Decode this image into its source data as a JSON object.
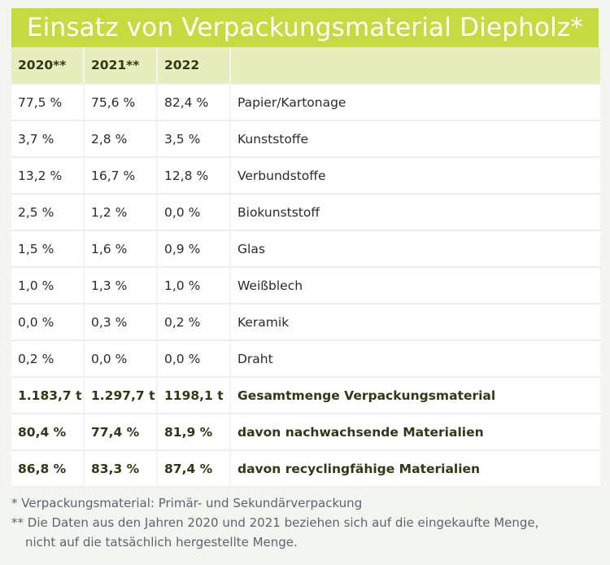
{
  "title": "Einsatz von Verpackungsmaterial Diepholz*",
  "table": {
    "headers": [
      "2020**",
      "2021**",
      "2022",
      ""
    ],
    "rows": [
      {
        "c2020": "77,5 %",
        "c2021": "75,6 %",
        "c2022": "82,4 %",
        "label": "Papier/Kartonage",
        "bold": false
      },
      {
        "c2020": "3,7 %",
        "c2021": "2,8 %",
        "c2022": "3,5 %",
        "label": "Kunststoffe",
        "bold": false
      },
      {
        "c2020": "13,2 %",
        "c2021": "16,7 %",
        "c2022": "12,8 %",
        "label": "Verbundstoffe",
        "bold": false
      },
      {
        "c2020": "2,5 %",
        "c2021": "1,2 %",
        "c2022": "0,0 %",
        "label": "Biokunststoff",
        "bold": false
      },
      {
        "c2020": "1,5 %",
        "c2021": "1,6 %",
        "c2022": "0,9 %",
        "label": "Glas",
        "bold": false
      },
      {
        "c2020": "1,0 %",
        "c2021": "1,3 %",
        "c2022": "1,0 %",
        "label": "Weißblech",
        "bold": false
      },
      {
        "c2020": "0,0 %",
        "c2021": "0,3 %",
        "c2022": "0,2 %",
        "label": "Keramik",
        "bold": false
      },
      {
        "c2020": "0,2 %",
        "c2021": "0,0 %",
        "c2022": "0,0 %",
        "label": "Draht",
        "bold": false
      },
      {
        "c2020": "1.183,7 t",
        "c2021": "1.297,7 t",
        "c2022": "1198,1 t",
        "label": "Gesamtmenge Verpackungsmaterial",
        "bold": true
      },
      {
        "c2020": "80,4 %",
        "c2021": "77,4 %",
        "c2022": "81,9 %",
        "label": "davon nachwachsende Materialien",
        "bold": true
      },
      {
        "c2020": "86,8 %",
        "c2021": "83,3 %",
        "c2022": "87,4 %",
        "label": "davon recyclingfähige Materialien",
        "bold": true
      }
    ]
  },
  "footnotes": {
    "note1_mark": "* ",
    "note1_text": "Verpackungsmaterial: Primär- und Sekundärverpackung",
    "note2_mark": "** ",
    "note2_text_line1": "Die Daten aus den Jahren 2020 und 2021 beziehen sich auf die eingekaufte Menge,",
    "note2_text_line2": "nicht auf die tatsächlich hergestellte Menge."
  },
  "colors": {
    "title_bg": "#c6db3f",
    "header_bg": "#e7eebd",
    "row_bg": "#ffffff",
    "page_bg": "#f3f6f0"
  }
}
